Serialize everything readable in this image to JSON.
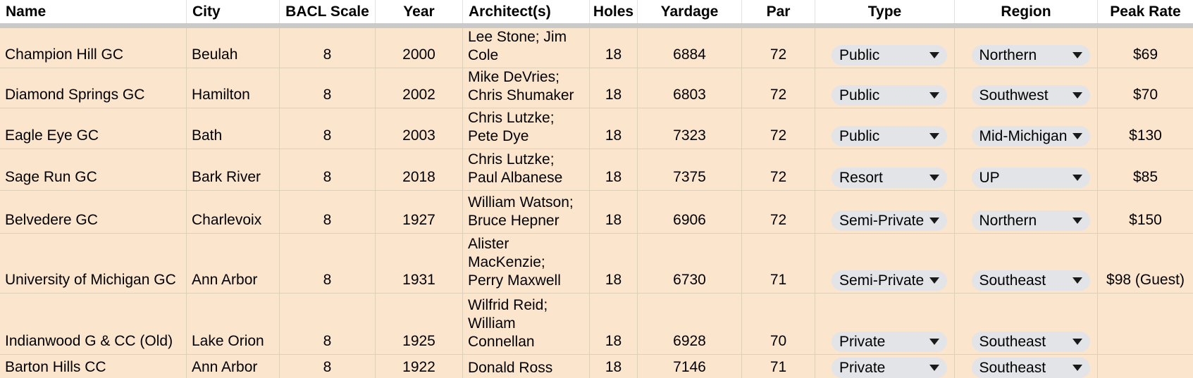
{
  "colors": {
    "cell_fill": "#fce5cd",
    "gridline": "#decfb9",
    "chip_fill": "#e2e4e8",
    "header_background": "#ffffff",
    "frozen_row_shadow": "#c9c9c9",
    "text": "#000000"
  },
  "icons": {
    "dropdown_arrow": "dropdown-arrow-icon"
  },
  "table": {
    "columns": [
      {
        "key": "name",
        "label": "Name",
        "align": "left",
        "kind": "text"
      },
      {
        "key": "city",
        "label": "City",
        "align": "left",
        "kind": "text"
      },
      {
        "key": "bacl_scale",
        "label": "BACL Scale",
        "align": "center",
        "kind": "text"
      },
      {
        "key": "year",
        "label": "Year",
        "align": "center",
        "kind": "text"
      },
      {
        "key": "architects",
        "label": "Architect(s)",
        "align": "left",
        "kind": "multiline"
      },
      {
        "key": "holes",
        "label": "Holes",
        "align": "center",
        "kind": "text"
      },
      {
        "key": "yardage",
        "label": "Yardage",
        "align": "center",
        "kind": "text"
      },
      {
        "key": "par",
        "label": "Par",
        "align": "center",
        "kind": "text"
      },
      {
        "key": "type",
        "label": "Type",
        "align": "center",
        "kind": "dropdown"
      },
      {
        "key": "region",
        "label": "Region",
        "align": "center",
        "kind": "dropdown"
      },
      {
        "key": "peak_rate",
        "label": "Peak Rate",
        "align": "center",
        "kind": "text"
      }
    ],
    "rows": [
      {
        "name": "Champion Hill GC",
        "city": "Beulah",
        "bacl_scale": "8",
        "year": "2000",
        "architects": "Lee Stone; Jim\nCole",
        "holes": "18",
        "yardage": "6884",
        "par": "72",
        "type": "Public",
        "region": "Northern",
        "peak_rate": "$69"
      },
      {
        "name": "Diamond Springs GC",
        "city": "Hamilton",
        "bacl_scale": "8",
        "year": "2002",
        "architects": "Mike DeVries;\nChris Shumaker",
        "holes": "18",
        "yardage": "6803",
        "par": "72",
        "type": "Public",
        "region": "Southwest",
        "peak_rate": "$70"
      },
      {
        "name": "Eagle Eye GC",
        "city": "Bath",
        "bacl_scale": "8",
        "year": "2003",
        "architects": "Chris Lutzke;\nPete Dye",
        "holes": "18",
        "yardage": "7323",
        "par": "72",
        "type": "Public",
        "region": "Mid-Michigan",
        "peak_rate": "$130"
      },
      {
        "name": "Sage Run GC",
        "city": "Bark River",
        "bacl_scale": "8",
        "year": "2018",
        "architects": "Chris Lutzke;\nPaul Albanese",
        "holes": "18",
        "yardage": "7375",
        "par": "72",
        "type": "Resort",
        "region": "UP",
        "peak_rate": "$85"
      },
      {
        "name": "Belvedere GC",
        "city": "Charlevoix",
        "bacl_scale": "8",
        "year": "1927",
        "architects": "William Watson;\nBruce Hepner",
        "holes": "18",
        "yardage": "6906",
        "par": "72",
        "type": "Semi-Private",
        "region": "Northern",
        "peak_rate": "$150"
      },
      {
        "name": "University of Michigan GC",
        "city": "Ann Arbor",
        "bacl_scale": "8",
        "year": "1931",
        "architects": "Alister\nMacKenzie;\nPerry Maxwell",
        "holes": "18",
        "yardage": "6730",
        "par": "71",
        "type": "Semi-Private",
        "region": "Southeast",
        "peak_rate": "$98 (Guest)"
      },
      {
        "name": "Indianwood G & CC (Old)",
        "city": "Lake Orion",
        "bacl_scale": "8",
        "year": "1925",
        "architects": "Wilfrid Reid;\nWilliam\nConnellan",
        "holes": "18",
        "yardage": "6928",
        "par": "70",
        "type": "Private",
        "region": "Southeast",
        "peak_rate": ""
      },
      {
        "name": "Barton Hills CC",
        "city": "Ann Arbor",
        "bacl_scale": "8",
        "year": "1922",
        "architects": "Donald Ross",
        "holes": "18",
        "yardage": "7146",
        "par": "71",
        "type": "Private",
        "region": "Southeast",
        "peak_rate": ""
      }
    ]
  }
}
